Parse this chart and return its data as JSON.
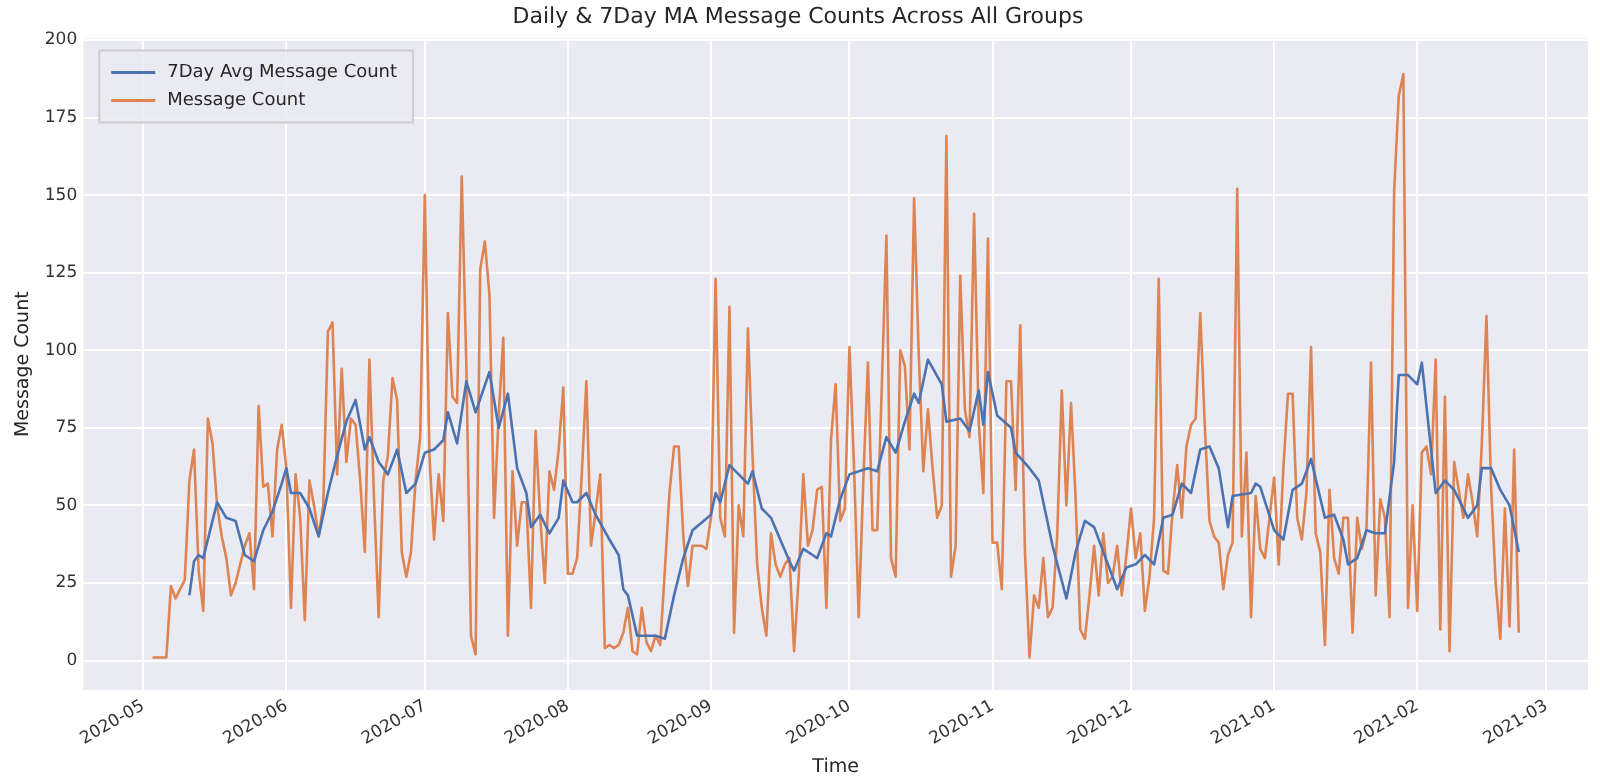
{
  "chart_data": {
    "type": "line",
    "title": "Daily & 7Day MA Message Counts Across All Groups",
    "xlabel": "Time",
    "ylabel": "Message Count",
    "xlim": [
      "2020-04-18",
      "2021-03-10"
    ],
    "xticks": [
      "2020-05",
      "2020-06",
      "2020-07",
      "2020-08",
      "2020-09",
      "2020-10",
      "2020-11",
      "2020-12",
      "2021-01",
      "2021-02",
      "2021-03"
    ],
    "ylim": [
      -9.5,
      200.5
    ],
    "yticks": [
      0,
      25,
      50,
      75,
      100,
      125,
      150,
      175,
      200
    ],
    "grid": true,
    "legend": "top left",
    "line_style": "solid",
    "series": [
      {
        "name": "7Day Avg Message Count",
        "color": "#4c72b0",
        "x": [
          "2020-05-11",
          "2020-05-12",
          "2020-05-13",
          "2020-05-14",
          "2020-05-16",
          "2020-05-17",
          "2020-05-19",
          "2020-05-21",
          "2020-05-23",
          "2020-05-25",
          "2020-05-27",
          "2020-05-29",
          "2020-05-31",
          "2020-06-01",
          "2020-06-02",
          "2020-06-04",
          "2020-06-06",
          "2020-06-08",
          "2020-06-10",
          "2020-06-12",
          "2020-06-14",
          "2020-06-16",
          "2020-06-18",
          "2020-06-19",
          "2020-06-21",
          "2020-06-23",
          "2020-06-25",
          "2020-06-27",
          "2020-06-29",
          "2020-07-01",
          "2020-07-03",
          "2020-07-05",
          "2020-07-06",
          "2020-07-08",
          "2020-07-10",
          "2020-07-12",
          "2020-07-15",
          "2020-07-17",
          "2020-07-19",
          "2020-07-21",
          "2020-07-23",
          "2020-07-24",
          "2020-07-26",
          "2020-07-28",
          "2020-07-30",
          "2020-07-31",
          "2020-08-02",
          "2020-08-03",
          "2020-08-05",
          "2020-08-07",
          "2020-08-10",
          "2020-08-12",
          "2020-08-13",
          "2020-08-14",
          "2020-08-16",
          "2020-08-18",
          "2020-08-20",
          "2020-08-22",
          "2020-08-24",
          "2020-08-26",
          "2020-08-28",
          "2020-09-01",
          "2020-09-02",
          "2020-09-03",
          "2020-09-05",
          "2020-09-07",
          "2020-09-09",
          "2020-09-10",
          "2020-09-12",
          "2020-09-14",
          "2020-09-16",
          "2020-09-18",
          "2020-09-19",
          "2020-09-21",
          "2020-09-23",
          "2020-09-24",
          "2020-09-26",
          "2020-09-27",
          "2020-09-29",
          "2020-10-01",
          "2020-10-05",
          "2020-10-07",
          "2020-10-09",
          "2020-10-11",
          "2020-10-13",
          "2020-10-15",
          "2020-10-16",
          "2020-10-18",
          "2020-10-21",
          "2020-10-22",
          "2020-10-25",
          "2020-10-27",
          "2020-10-29",
          "2020-10-30",
          "2020-10-31",
          "2020-11-02",
          "2020-11-05",
          "2020-11-06",
          "2020-11-09",
          "2020-11-11",
          "2020-11-14",
          "2020-11-17",
          "2020-11-19",
          "2020-11-21",
          "2020-11-23",
          "2020-11-26",
          "2020-11-28",
          "2020-11-30",
          "2020-12-02",
          "2020-12-04",
          "2020-12-06",
          "2020-12-08",
          "2020-12-10",
          "2020-12-12",
          "2020-12-14",
          "2020-12-16",
          "2020-12-18",
          "2020-12-20",
          "2020-12-22",
          "2020-12-23",
          "2020-12-27",
          "2020-12-28",
          "2020-12-29",
          "2021-01-01",
          "2021-01-03",
          "2021-01-05",
          "2021-01-07",
          "2021-01-09",
          "2021-01-12",
          "2021-01-14",
          "2021-01-16",
          "2021-01-17",
          "2021-01-19",
          "2021-01-21",
          "2021-01-23",
          "2021-01-25",
          "2021-01-27",
          "2021-01-28",
          "2021-01-30",
          "2021-02-01",
          "2021-02-02",
          "2021-02-05",
          "2021-02-07",
          "2021-02-09",
          "2021-02-12",
          "2021-02-14",
          "2021-02-15",
          "2021-02-17",
          "2021-02-19",
          "2021-02-21",
          "2021-02-23"
        ],
        "values": [
          21,
          32,
          34,
          33,
          45,
          51,
          46,
          45,
          34,
          32,
          42,
          48,
          57,
          62,
          54,
          54,
          49,
          40,
          54,
          66,
          77,
          84,
          68,
          72,
          64,
          60,
          68,
          54,
          57,
          67,
          68,
          71,
          80,
          70,
          90,
          80,
          93,
          75,
          86,
          62,
          54,
          43,
          47,
          41,
          46,
          58,
          51,
          51,
          54,
          47,
          39,
          34,
          23,
          21,
          8,
          8,
          8,
          7,
          21,
          33,
          42,
          47,
          54,
          51,
          63,
          60,
          57,
          61,
          49,
          46,
          39,
          32,
          29,
          36,
          34,
          33,
          41,
          40,
          52,
          60,
          62,
          61,
          72,
          67,
          77,
          86,
          83,
          97,
          89,
          77,
          78,
          74,
          87,
          76,
          93,
          79,
          75,
          67,
          62,
          58,
          37,
          20,
          35,
          45,
          43,
          31,
          23,
          30,
          31,
          34,
          31,
          46,
          47,
          57,
          54,
          68,
          69,
          62,
          43,
          53,
          54,
          57,
          56,
          42,
          39,
          55,
          57,
          65,
          46,
          47,
          39,
          31,
          33,
          42,
          41,
          41,
          64,
          92,
          92,
          89,
          96,
          54,
          58,
          55,
          46,
          50,
          62,
          62,
          55,
          50,
          35
        ]
      },
      {
        "name": "Message Count",
        "color": "#dd8452",
        "x": [
          "2020-05-03",
          "2020-05-04",
          "2020-05-05",
          "2020-05-06",
          "2020-05-07",
          "2020-05-08",
          "2020-05-09",
          "2020-05-10",
          "2020-05-11",
          "2020-05-12",
          "2020-05-13",
          "2020-05-14",
          "2020-05-15",
          "2020-05-16",
          "2020-05-17",
          "2020-05-18",
          "2020-05-19",
          "2020-05-20",
          "2020-05-21",
          "2020-05-22",
          "2020-05-23",
          "2020-05-24",
          "2020-05-25",
          "2020-05-26",
          "2020-05-27",
          "2020-05-28",
          "2020-05-29",
          "2020-05-30",
          "2020-05-31",
          "2020-06-01",
          "2020-06-02",
          "2020-06-03",
          "2020-06-04",
          "2020-06-05",
          "2020-06-06",
          "2020-06-07",
          "2020-06-08",
          "2020-06-09",
          "2020-06-10",
          "2020-06-11",
          "2020-06-12",
          "2020-06-13",
          "2020-06-14",
          "2020-06-15",
          "2020-06-16",
          "2020-06-17",
          "2020-06-18",
          "2020-06-19",
          "2020-06-20",
          "2020-06-21",
          "2020-06-22",
          "2020-06-23",
          "2020-06-24",
          "2020-06-25",
          "2020-06-26",
          "2020-06-27",
          "2020-06-28",
          "2020-06-29",
          "2020-06-30",
          "2020-07-01",
          "2020-07-02",
          "2020-07-03",
          "2020-07-04",
          "2020-07-05",
          "2020-07-06",
          "2020-07-07",
          "2020-07-08",
          "2020-07-09",
          "2020-07-10",
          "2020-07-11",
          "2020-07-12",
          "2020-07-13",
          "2020-07-14",
          "2020-07-15",
          "2020-07-16",
          "2020-07-17",
          "2020-07-18",
          "2020-07-19",
          "2020-07-20",
          "2020-07-21",
          "2020-07-22",
          "2020-07-23",
          "2020-07-24",
          "2020-07-25",
          "2020-07-26",
          "2020-07-27",
          "2020-07-28",
          "2020-07-29",
          "2020-07-30",
          "2020-07-31",
          "2020-08-01",
          "2020-08-02",
          "2020-08-03",
          "2020-08-04",
          "2020-08-05",
          "2020-08-06",
          "2020-08-07",
          "2020-08-08",
          "2020-08-09",
          "2020-08-10",
          "2020-08-11",
          "2020-08-12",
          "2020-08-13",
          "2020-08-14",
          "2020-08-15",
          "2020-08-16",
          "2020-08-17",
          "2020-08-18",
          "2020-08-19",
          "2020-08-20",
          "2020-08-21",
          "2020-08-22",
          "2020-08-23",
          "2020-08-24",
          "2020-08-25",
          "2020-08-26",
          "2020-08-27",
          "2020-08-28",
          "2020-08-29",
          "2020-08-30",
          "2020-08-31",
          "2020-09-01",
          "2020-09-02",
          "2020-09-03",
          "2020-09-04",
          "2020-09-05",
          "2020-09-06",
          "2020-09-07",
          "2020-09-08",
          "2020-09-09",
          "2020-09-10",
          "2020-09-11",
          "2020-09-12",
          "2020-09-13",
          "2020-09-14",
          "2020-09-15",
          "2020-09-16",
          "2020-09-17",
          "2020-09-18",
          "2020-09-19",
          "2020-09-20",
          "2020-09-21",
          "2020-09-22",
          "2020-09-23",
          "2020-09-24",
          "2020-09-25",
          "2020-09-26",
          "2020-09-27",
          "2020-09-28",
          "2020-09-29",
          "2020-09-30",
          "2020-10-01",
          "2020-10-02",
          "2020-10-03",
          "2020-10-04",
          "2020-10-05",
          "2020-10-06",
          "2020-10-07",
          "2020-10-08",
          "2020-10-09",
          "2020-10-10",
          "2020-10-11",
          "2020-10-12",
          "2020-10-13",
          "2020-10-14",
          "2020-10-15",
          "2020-10-16",
          "2020-10-17",
          "2020-10-18",
          "2020-10-19",
          "2020-10-20",
          "2020-10-21",
          "2020-10-22",
          "2020-10-23",
          "2020-10-24",
          "2020-10-25",
          "2020-10-26",
          "2020-10-27",
          "2020-10-28",
          "2020-10-29",
          "2020-10-30",
          "2020-10-31",
          "2020-11-01",
          "2020-11-02",
          "2020-11-03",
          "2020-11-04",
          "2020-11-05",
          "2020-11-06",
          "2020-11-07",
          "2020-11-08",
          "2020-11-09",
          "2020-11-10",
          "2020-11-11",
          "2020-11-12",
          "2020-11-13",
          "2020-11-14",
          "2020-11-15",
          "2020-11-16",
          "2020-11-17",
          "2020-11-18",
          "2020-11-19",
          "2020-11-20",
          "2020-11-21",
          "2020-11-22",
          "2020-11-23",
          "2020-11-24",
          "2020-11-25",
          "2020-11-26",
          "2020-11-27",
          "2020-11-28",
          "2020-11-29",
          "2020-11-30",
          "2020-12-01",
          "2020-12-02",
          "2020-12-03",
          "2020-12-04",
          "2020-12-05",
          "2020-12-06",
          "2020-12-07",
          "2020-12-08",
          "2020-12-09",
          "2020-12-10",
          "2020-12-11",
          "2020-12-12",
          "2020-12-13",
          "2020-12-14",
          "2020-12-15",
          "2020-12-16",
          "2020-12-17",
          "2020-12-18",
          "2020-12-19",
          "2020-12-20",
          "2020-12-21",
          "2020-12-22",
          "2020-12-23",
          "2020-12-24",
          "2020-12-25",
          "2020-12-26",
          "2020-12-27",
          "2020-12-28",
          "2020-12-29",
          "2020-12-30",
          "2020-12-31",
          "2021-01-01",
          "2021-01-02",
          "2021-01-03",
          "2021-01-04",
          "2021-01-05",
          "2021-01-06",
          "2021-01-07",
          "2021-01-08",
          "2021-01-09",
          "2021-01-10",
          "2021-01-11",
          "2021-01-12",
          "2021-01-13",
          "2021-01-14",
          "2021-01-15",
          "2021-01-16",
          "2021-01-17",
          "2021-01-18",
          "2021-01-19",
          "2021-01-20",
          "2021-01-21",
          "2021-01-22",
          "2021-01-23",
          "2021-01-24",
          "2021-01-25",
          "2021-01-26",
          "2021-01-27",
          "2021-01-28",
          "2021-01-29",
          "2021-01-30",
          "2021-01-31",
          "2021-02-01",
          "2021-02-02",
          "2021-02-03",
          "2021-02-04",
          "2021-02-05",
          "2021-02-06",
          "2021-02-07",
          "2021-02-08",
          "2021-02-09",
          "2021-02-10",
          "2021-02-11",
          "2021-02-12",
          "2021-02-13",
          "2021-02-14",
          "2021-02-15",
          "2021-02-16",
          "2021-02-17",
          "2021-02-18",
          "2021-02-19",
          "2021-02-20",
          "2021-02-21",
          "2021-02-22",
          "2021-02-23"
        ],
        "values": [
          1,
          1,
          1,
          1,
          24,
          20,
          23,
          26,
          58,
          68,
          29,
          16,
          78,
          70,
          50,
          40,
          33,
          21,
          25,
          31,
          37,
          41,
          23,
          82,
          56,
          57,
          40,
          68,
          76,
          62,
          17,
          60,
          46,
          13,
          58,
          50,
          40,
          50,
          106,
          109,
          60,
          94,
          64,
          78,
          76,
          58,
          35,
          97,
          52,
          14,
          58,
          66,
          91,
          84,
          35,
          27,
          35,
          58,
          72,
          150,
          66,
          39,
          60,
          45,
          112,
          85,
          83,
          156,
          95,
          8,
          2,
          126,
          135,
          118,
          46,
          79,
          104,
          8,
          61,
          37,
          51,
          51,
          17,
          74,
          46,
          25,
          61,
          55,
          68,
          88,
          28,
          28,
          33,
          60,
          90,
          37,
          48,
          60,
          4,
          5,
          4,
          5,
          9,
          17,
          3,
          2,
          17,
          6,
          3,
          8,
          5,
          29,
          54,
          69,
          69,
          40,
          24,
          37,
          37,
          37,
          36,
          46,
          123,
          46,
          40,
          114,
          9,
          50,
          40,
          107,
          66,
          31,
          17,
          8,
          41,
          31,
          27,
          31,
          33,
          3,
          27,
          60,
          37,
          42,
          55,
          56,
          17,
          71,
          89,
          45,
          49,
          101,
          62,
          14,
          58,
          96,
          42,
          42,
          88,
          137,
          33,
          27,
          100,
          95,
          68,
          149,
          99,
          61,
          81,
          62,
          46,
          50,
          169,
          27,
          37,
          124,
          81,
          72,
          144,
          77,
          54,
          136,
          38,
          38,
          23,
          90,
          90,
          55,
          108,
          36,
          1,
          21,
          17,
          33,
          14,
          17,
          40,
          87,
          50,
          83,
          52,
          10,
          7,
          21,
          37,
          21,
          41,
          25,
          27,
          37,
          21,
          34,
          49,
          33,
          41,
          16,
          27,
          46,
          123,
          29,
          28,
          48,
          63,
          46,
          69,
          76,
          78,
          112,
          75,
          45,
          40,
          38,
          23,
          34,
          38,
          152,
          40,
          67,
          14,
          53,
          36,
          33,
          46,
          59,
          31,
          62,
          86,
          86,
          46,
          39,
          54,
          101,
          41,
          35,
          5,
          55,
          33,
          28,
          46,
          46,
          9,
          46,
          36,
          42,
          96,
          21,
          52,
          46,
          14,
          151,
          182,
          189,
          17,
          50,
          16,
          67,
          69,
          60,
          97,
          10,
          85,
          3,
          64,
          55,
          46,
          60,
          51,
          40,
          70,
          111,
          56,
          25,
          7,
          49,
          11,
          68,
          9
        ]
      }
    ]
  }
}
